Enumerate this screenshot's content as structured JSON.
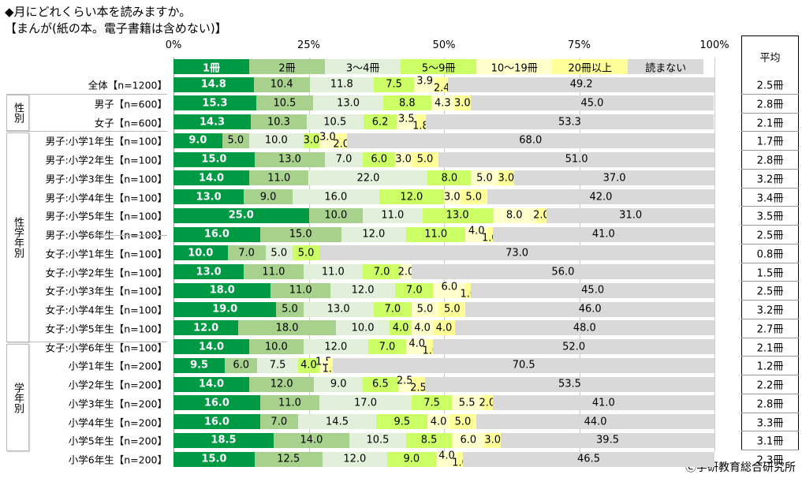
{
  "title_line1": "◆月にどれくらい本を読みますか。",
  "title_line2": "【まんが(紙の本。電子書籍は含めない)】",
  "copyright": "Ⓒ学研教育総合研究所",
  "avg_header": "平均",
  "groups": [
    "性別",
    "性学年別",
    "学年別"
  ],
  "chart_data": {
    "type": "bar",
    "orientation": "horizontal-stacked-100",
    "xlim": [
      0,
      100
    ],
    "xticks": [
      "0%",
      "25%",
      "50%",
      "75%",
      "100%"
    ],
    "legend_position": "top (inside first bar)",
    "series": [
      {
        "name": "1冊",
        "color": "#009a44"
      },
      {
        "name": "2冊",
        "color": "#a9d18e"
      },
      {
        "name": "3～4冊",
        "color": "#e2efda"
      },
      {
        "name": "5～9冊",
        "color": "#ccff66"
      },
      {
        "name": "10～19冊",
        "color": "#ffffcc"
      },
      {
        "name": "20冊以上",
        "color": "#ffff99"
      },
      {
        "name": "読まない",
        "color": "#d9d9d9"
      }
    ],
    "rows": [
      {
        "label": "全体【n=1200】",
        "values": [
          14.8,
          10.4,
          11.8,
          7.5,
          3.9,
          2.4,
          49.2
        ],
        "avg": "2.5冊"
      },
      {
        "label": "男子【n=600】",
        "values": [
          15.3,
          10.5,
          13.0,
          8.8,
          4.3,
          3.0,
          45.0
        ],
        "avg": "2.8冊"
      },
      {
        "label": "女子【n=600】",
        "values": [
          14.3,
          10.3,
          10.5,
          6.2,
          3.5,
          1.8,
          53.3
        ],
        "avg": "2.1冊"
      },
      {
        "label": "男子:小学1年生【n=100】",
        "values": [
          9.0,
          5.0,
          10.0,
          3.0,
          3.0,
          2.0,
          68.0
        ],
        "avg": "1.7冊"
      },
      {
        "label": "男子:小学2年生【n=100】",
        "values": [
          15.0,
          13.0,
          7.0,
          6.0,
          3.0,
          5.0,
          51.0
        ],
        "avg": "2.8冊"
      },
      {
        "label": "男子:小学3年生【n=100】",
        "values": [
          14.0,
          11.0,
          22.0,
          8.0,
          5.0,
          3.0,
          37.0
        ],
        "avg": "3.2冊"
      },
      {
        "label": "男子:小学4年生【n=100】",
        "values": [
          13.0,
          9.0,
          16.0,
          12.0,
          3.0,
          5.0,
          42.0
        ],
        "avg": "3.4冊"
      },
      {
        "label": "男子:小学5年生【n=100】",
        "values": [
          25.0,
          10.0,
          11.0,
          13.0,
          8.0,
          2.0,
          31.0
        ],
        "avg": "3.5冊"
      },
      {
        "label": "男子:小学6年生【n=100】",
        "values": [
          16.0,
          15.0,
          12.0,
          11.0,
          4.0,
          1.0,
          41.0
        ],
        "avg": "2.5冊"
      },
      {
        "label": "女子:小学1年生【n=100】",
        "values": [
          10.0,
          7.0,
          5.0,
          5.0,
          0,
          0,
          73.0
        ],
        "avg": "0.8冊"
      },
      {
        "label": "女子:小学2年生【n=100】",
        "values": [
          13.0,
          11.0,
          11.0,
          7.0,
          2.0,
          0,
          56.0
        ],
        "avg": "1.5冊"
      },
      {
        "label": "女子:小学3年生【n=100】",
        "values": [
          18.0,
          11.0,
          12.0,
          7.0,
          6.0,
          1.0,
          45.0
        ],
        "avg": "2.5冊"
      },
      {
        "label": "女子:小学4年生【n=100】",
        "values": [
          19.0,
          5.0,
          13.0,
          7.0,
          5.0,
          5.0,
          46.0
        ],
        "avg": "3.2冊"
      },
      {
        "label": "女子:小学5年生【n=100】",
        "values": [
          12.0,
          18.0,
          10.0,
          4.0,
          4.0,
          4.0,
          48.0
        ],
        "avg": "2.7冊"
      },
      {
        "label": "女子:小学6年生【n=100】",
        "values": [
          14.0,
          10.0,
          12.0,
          7.0,
          4.0,
          1.0,
          52.0
        ],
        "avg": "2.1冊"
      },
      {
        "label": "小学1年生【n=200】",
        "values": [
          9.5,
          6.0,
          7.5,
          4.0,
          1.5,
          1.0,
          70.5
        ],
        "avg": "1.2冊"
      },
      {
        "label": "小学2年生【n=200】",
        "values": [
          14.0,
          12.0,
          9.0,
          6.5,
          2.5,
          2.5,
          53.5
        ],
        "avg": "2.2冊"
      },
      {
        "label": "小学3年生【n=200】",
        "values": [
          16.0,
          11.0,
          17.0,
          7.5,
          5.5,
          2.0,
          41.0
        ],
        "avg": "2.8冊"
      },
      {
        "label": "小学4年生【n=200】",
        "values": [
          16.0,
          7.0,
          14.5,
          9.5,
          4.0,
          5.0,
          44.0
        ],
        "avg": "3.3冊"
      },
      {
        "label": "小学5年生【n=200】",
        "values": [
          18.5,
          14.0,
          10.5,
          8.5,
          6.0,
          3.0,
          39.5
        ],
        "avg": "3.1冊"
      },
      {
        "label": "小学6年生【n=200】",
        "values": [
          15.0,
          12.5,
          12.0,
          9.0,
          4.0,
          1.0,
          46.5
        ],
        "avg": "2.3冊"
      }
    ]
  }
}
